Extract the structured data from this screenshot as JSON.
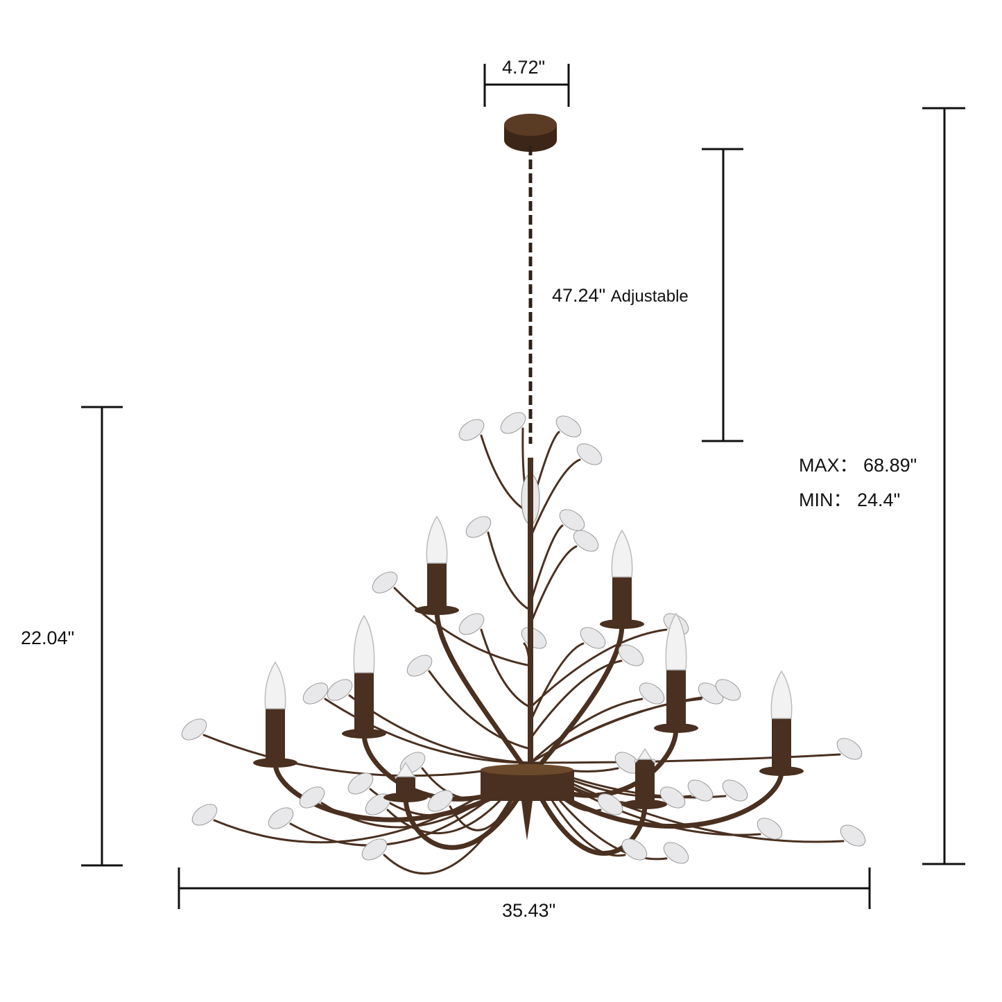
{
  "dimensions": {
    "canopy_width": "4.72\"",
    "chain_length_value": "47.24\"",
    "chain_length_note": "Adjustable",
    "body_height": "22.04\"",
    "body_width": "35.43\"",
    "overall_max": "MAX：",
    "overall_max_value": "68.89\"",
    "overall_min": "MIN：",
    "overall_min_value": "24.4\""
  },
  "colors": {
    "dimension_line": "#111111",
    "metal_finish": "#4a3020",
    "metal_highlight": "#8a6238",
    "crystal": "#e8e8ea",
    "bulb": "#f2f2f2"
  }
}
